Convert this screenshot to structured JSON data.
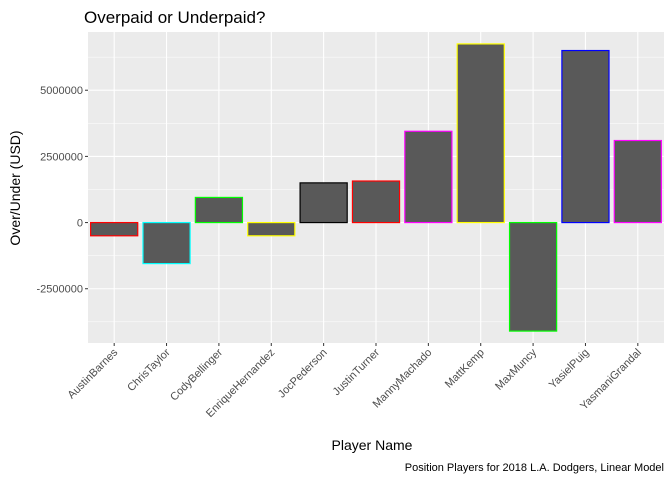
{
  "chart_data": {
    "type": "bar",
    "title": "Overpaid or Underpaid?",
    "caption": "Position Players for 2018 L.A. Dodgers, Linear Model",
    "xlabel": "Player Name",
    "ylabel": "Over/Under (USD)",
    "categories": [
      "AustinBarnes",
      "ChrisTaylor",
      "CodyBellinger",
      "EnriqueHernandez",
      "JocPederson",
      "JustinTurner",
      "MannyMachado",
      "MattKemp",
      "MaxMuncy",
      "YasielPuig",
      "YasmaniGrandal"
    ],
    "values": [
      -500000,
      -1550000,
      950000,
      -500000,
      1500000,
      1570000,
      3450000,
      6750000,
      -4100000,
      6500000,
      3100000
    ],
    "outline_colors": [
      "#ff0000",
      "#00ffff",
      "#00ff00",
      "#ffff00",
      "#000000",
      "#ff0000",
      "#ff00ff",
      "#ffff00",
      "#00ff00",
      "#0000ff",
      "#ff00ff"
    ],
    "fill_color": "#595959",
    "yticks": [
      -2500000,
      0,
      2500000,
      5000000
    ],
    "ytick_labels": [
      "-2500000",
      "0",
      "2500000",
      "5000000"
    ],
    "ylim": [
      -4550000,
      7200000
    ],
    "panel_background": "#ebebeb",
    "grid_color": "#ffffff",
    "grid": true,
    "legend": "none"
  }
}
